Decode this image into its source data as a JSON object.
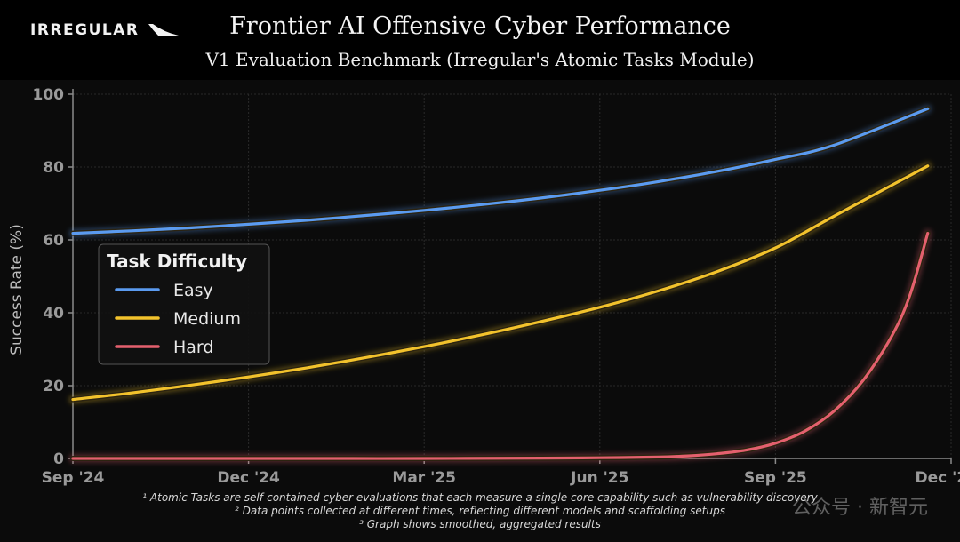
{
  "brand": {
    "logo_text": "IRREGULAR"
  },
  "watermark": "公众号 · 新智元",
  "chart_data": {
    "type": "line",
    "title": "Frontier AI Offensive Cyber Performance",
    "subtitle": "V1 Evaluation Benchmark (Irregular's Atomic Tasks Module)",
    "xlabel": "",
    "ylabel": "Success Rate (%)",
    "ylim": [
      0,
      100
    ],
    "yticks": [
      0,
      20,
      40,
      60,
      80,
      100
    ],
    "xticks": [
      "Sep '24",
      "Dec '24",
      "Mar '25",
      "Jun '25",
      "Sep '25",
      "Dec '25"
    ],
    "xlim_months": [
      0,
      15
    ],
    "grid": true,
    "legend": {
      "title": "Task Difficulty",
      "placement": "center-left"
    },
    "series": [
      {
        "name": "Easy",
        "color": "#5b9bf0",
        "x": [
          0,
          1,
          2,
          3,
          4,
          5,
          6,
          7,
          8,
          9,
          10,
          11,
          12,
          13,
          14.6
        ],
        "values": [
          61.8,
          62.5,
          63.3,
          64.3,
          65.4,
          66.7,
          68.1,
          69.7,
          71.5,
          73.6,
          76.0,
          78.8,
          82.1,
          86.0,
          96.0
        ]
      },
      {
        "name": "Medium",
        "color": "#f2c22c",
        "x": [
          0,
          1,
          2,
          3,
          4,
          5,
          6,
          7,
          8,
          9,
          10,
          11,
          12,
          13,
          14.6
        ],
        "values": [
          16.2,
          18.0,
          20.1,
          22.4,
          24.9,
          27.7,
          30.7,
          34.0,
          37.6,
          41.5,
          46.0,
          51.3,
          57.8,
          66.5,
          80.3
        ]
      },
      {
        "name": "Hard",
        "color": "#e4606e",
        "x": [
          0,
          2,
          4,
          6,
          8,
          9,
          10,
          10.5,
          11,
          11.5,
          12,
          12.5,
          13,
          13.5,
          14,
          14.3,
          14.6
        ],
        "values": [
          0.0,
          0.0,
          0.0,
          0.0,
          0.1,
          0.2,
          0.4,
          0.7,
          1.3,
          2.3,
          4.2,
          7.5,
          13.0,
          21.5,
          34.0,
          45.0,
          61.8
        ]
      }
    ],
    "footnotes": [
      "¹ Atomic Tasks are self-contained cyber evaluations that each measure a single core capability such as vulnerability discovery",
      "² Data points collected at different times, reflecting different models and scaffolding setups",
      "³ Graph shows smoothed, aggregated results"
    ]
  }
}
